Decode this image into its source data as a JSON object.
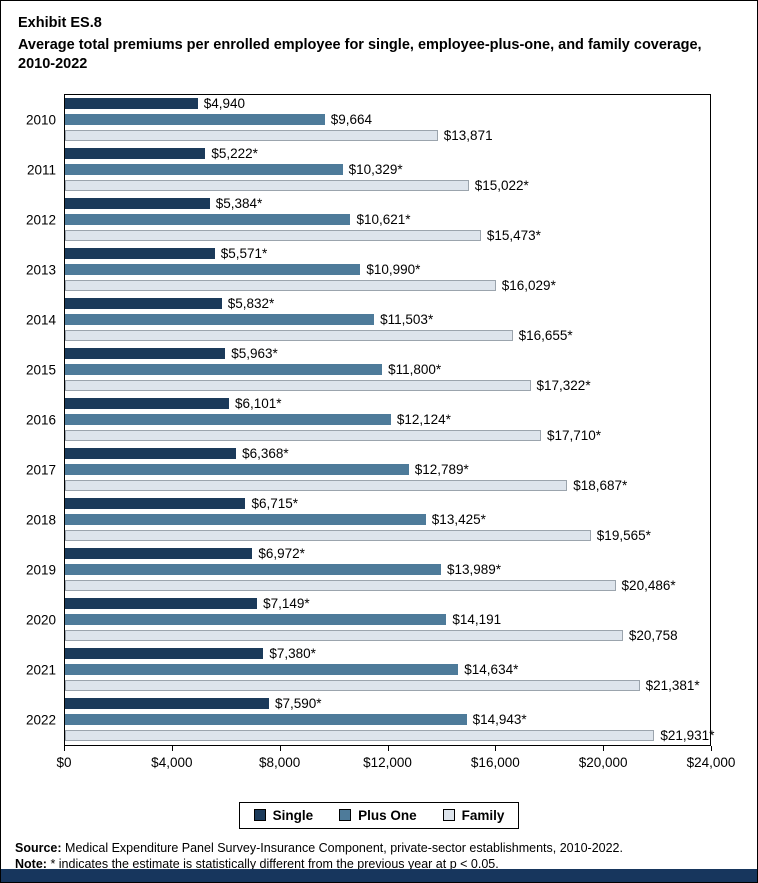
{
  "header": {
    "exhibit": "Exhibit ES.8",
    "title": "Average total premiums per enrolled employee for single, employee-plus-one, and family coverage, 2010-2022"
  },
  "chart_data": {
    "type": "bar",
    "orientation": "horizontal",
    "title": "Average total premiums per enrolled employee for single, employee-plus-one, and family coverage, 2010-2022",
    "xlabel": "",
    "ylabel": "",
    "xlim": [
      0,
      24000
    ],
    "xticks": [
      0,
      4000,
      8000,
      12000,
      16000,
      20000,
      24000
    ],
    "xtick_labels": [
      "$0",
      "$4,000",
      "$8,000",
      "$12,000",
      "$16,000",
      "$20,000",
      "$24,000"
    ],
    "grid": false,
    "legend_position": "bottom",
    "categories": [
      "2010",
      "2011",
      "2012",
      "2013",
      "2014",
      "2015",
      "2016",
      "2017",
      "2018",
      "2019",
      "2020",
      "2021",
      "2022"
    ],
    "series": [
      {
        "name": "Single",
        "color": "#1b3a5a",
        "border": "",
        "values": [
          4940,
          5222,
          5384,
          5571,
          5832,
          5963,
          6101,
          6368,
          6715,
          6972,
          7149,
          7380,
          7590
        ],
        "labels": [
          "$4,940",
          "$5,222*",
          "$5,384*",
          "$5,571*",
          "$5,832*",
          "$5,963*",
          "$6,101*",
          "$6,368*",
          "$6,715*",
          "$6,972*",
          "$7,149*",
          "$7,380*",
          "$7,590*"
        ]
      },
      {
        "name": "Plus One",
        "color": "#4e7b9a",
        "border": "",
        "values": [
          9664,
          10329,
          10621,
          10990,
          11503,
          11800,
          12124,
          12789,
          13425,
          13989,
          14191,
          14634,
          14943
        ],
        "labels": [
          "$9,664",
          "$10,329*",
          "$10,621*",
          "$10,990*",
          "$11,503*",
          "$11,800*",
          "$12,124*",
          "$12,789*",
          "$13,425*",
          "$13,989*",
          "$14,191",
          "$14,634*",
          "$14,943*"
        ]
      },
      {
        "name": "Family",
        "color": "#dde4ec",
        "border": "#9ba4ad",
        "values": [
          13871,
          15022,
          15473,
          16029,
          16655,
          17322,
          17710,
          18687,
          19565,
          20486,
          20758,
          21381,
          21931
        ],
        "labels": [
          "$13,871",
          "$15,022*",
          "$15,473*",
          "$16,029*",
          "$16,655*",
          "$17,322*",
          "$17,710*",
          "$18,687*",
          "$19,565*",
          "$20,486*",
          "$20,758",
          "$21,381*",
          "$21,931*"
        ]
      }
    ]
  },
  "footnotes": {
    "source_label": "Source:",
    "source_text": "Medical Expenditure Panel Survey-Insurance Component, private-sector establishments, 2010-2022.",
    "note_label": "Note:",
    "note_text": "* indicates the estimate is statistically different from the previous year at p < 0.05."
  }
}
